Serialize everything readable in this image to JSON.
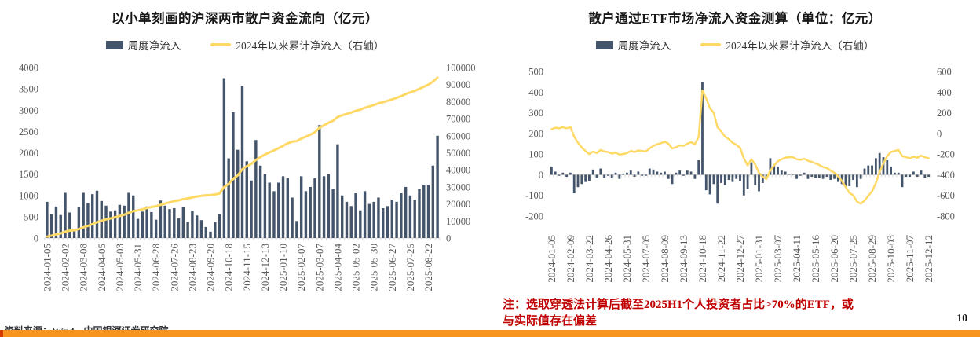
{
  "page": {
    "page_number": "10",
    "footnote": {
      "line1": "注：选取穿透法计算后截至2025H1个人投资者占比>70%的ETF，或",
      "line2": "与实际值存在偏差"
    },
    "source": "资料来源：Wind，中国银河证券研究院",
    "accent_color": "#F7941D",
    "accent_cap_color": "#D83B01",
    "axis_text_color": "#595959"
  },
  "chart_data": [
    {
      "type": "bar",
      "title": "以小单刻画的沪深两市散户资金流向（亿元）",
      "legend": [
        {
          "label": "周度净流入",
          "kind": "bar"
        },
        {
          "label": "2024年以来累计净流入（右轴）",
          "kind": "line"
        }
      ],
      "colors": {
        "bar": "#44546A",
        "line": "#FFD966"
      },
      "left_axis": {
        "min": 0,
        "max": 4000,
        "ticks": [
          0,
          500,
          1000,
          1500,
          2000,
          2500,
          3000,
          3500,
          4000
        ]
      },
      "right_axis": {
        "min": 0,
        "max": 100000,
        "ticks": [
          0,
          10000,
          20000,
          30000,
          40000,
          50000,
          60000,
          70000,
          80000,
          90000,
          100000
        ]
      },
      "x_tick_labels": [
        "2024-01-05",
        "2024-02-02",
        "2024-03-08",
        "2024-04-05",
        "2024-05-03",
        "2024-05-31",
        "2024-06-28",
        "2024-07-26",
        "2024-08-23",
        "2024-09-20",
        "2024-10-18",
        "2024-11-15",
        "2024-12-13",
        "2025-01-10",
        "2025-02-07",
        "2025-03-07",
        "2025-04-04",
        "2025-05-02",
        "2025-05-30",
        "2025-06-27",
        "2025-07-25",
        "2025-08-22"
      ],
      "tick_every": 4,
      "line_mode": "cumulative_on_right_axis",
      "bars": [
        850,
        560,
        740,
        540,
        1060,
        600,
        180,
        720,
        1060,
        820,
        1030,
        1110,
        870,
        760,
        620,
        650,
        780,
        760,
        1060,
        1000,
        450,
        620,
        740,
        610,
        430,
        880,
        760,
        680,
        700,
        460,
        720,
        380,
        640,
        530,
        420,
        260,
        150,
        370,
        560,
        3750,
        1870,
        2950,
        2070,
        3570,
        1800,
        1350,
        2300,
        1700,
        1500,
        1300,
        1100,
        1300,
        1450,
        1400,
        950,
        400,
        1450,
        1100,
        1200,
        1400,
        2650,
        1450,
        1500,
        1150,
        2200,
        1000,
        850,
        750,
        1050,
        650,
        1100,
        800,
        850,
        950,
        700,
        750,
        900,
        850,
        1050,
        1200,
        1000,
        900,
        1150,
        1250,
        1250,
        1700,
        2400
      ]
    },
    {
      "type": "bar",
      "title": "散户通过ETF市场净流入资金测算（单位：亿元）",
      "legend": [
        {
          "label": "周度净流入",
          "kind": "bar"
        },
        {
          "label": "2024年以来累计净流入（右轴）",
          "kind": "line"
        }
      ],
      "colors": {
        "bar": "#44546A",
        "line": "#FFD966"
      },
      "left_axis": {
        "min": -200,
        "max": 500,
        "ticks": [
          500,
          400,
          300,
          200,
          100,
          0,
          -100,
          -200
        ]
      },
      "right_axis": {
        "min": -800,
        "max": 600,
        "ticks": [
          600,
          400,
          200,
          0,
          -200,
          -400,
          -600,
          -800
        ]
      },
      "x_tick_labels": [
        "2024-01-05",
        "2024-02-09",
        "2024-03-22",
        "2024-04-26",
        "2024-05-31",
        "2024-07-05",
        "2024-08-09",
        "2024-09-13",
        "2024-10-18",
        "2024-11-22",
        "2024-12-27",
        "2025-01-31",
        "2025-03-07",
        "2025-04-11",
        "2025-05-16",
        "2025-06-20",
        "2025-07-25",
        "2025-08-29",
        "2025-10-03",
        "2025-11-07",
        "2025-12-12"
      ],
      "tick_every": 5,
      "line_mode": "cumulative_on_right_axis",
      "bars": [
        40,
        15,
        -5,
        10,
        -10,
        10,
        -90,
        -60,
        -45,
        -35,
        -30,
        25,
        -15,
        30,
        -15,
        -5,
        -15,
        10,
        -20,
        5,
        10,
        20,
        -10,
        15,
        -5,
        -5,
        30,
        25,
        15,
        10,
        15,
        -20,
        -45,
        10,
        20,
        -5,
        20,
        15,
        -20,
        70,
        450,
        -75,
        -95,
        -45,
        -140,
        -40,
        -50,
        -25,
        -35,
        -20,
        -30,
        -100,
        -70,
        60,
        -50,
        -80,
        -40,
        -20,
        80,
        50,
        40,
        20,
        15,
        5,
        0,
        -20,
        -5,
        10,
        -20,
        -10,
        -15,
        -15,
        -20,
        -10,
        -25,
        -20,
        -35,
        -45,
        -60,
        -55,
        -25,
        -60,
        -20,
        30,
        45,
        45,
        80,
        105,
        85,
        70,
        40,
        10,
        10,
        -60,
        -10,
        -10,
        15,
        -10,
        20,
        -15,
        -10
      ]
    }
  ]
}
